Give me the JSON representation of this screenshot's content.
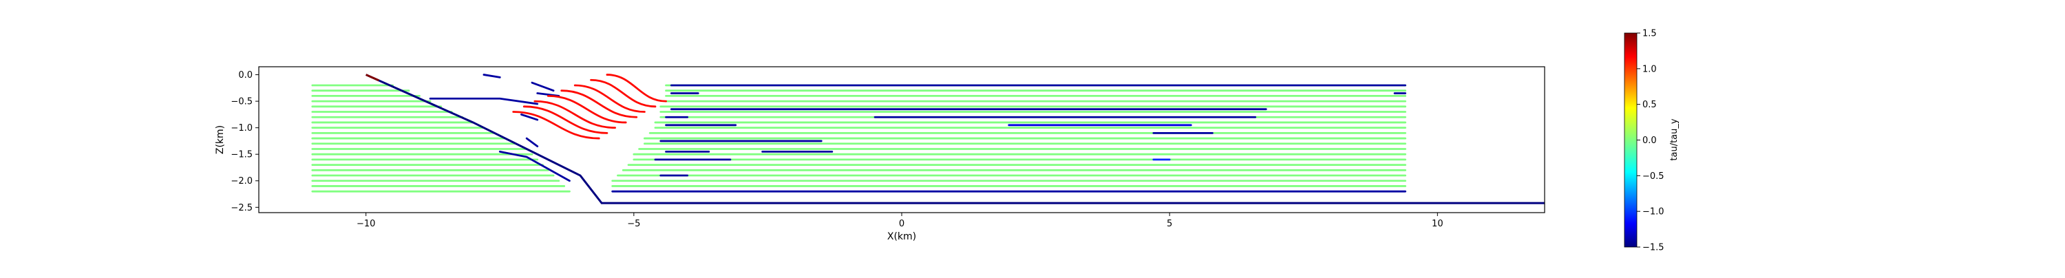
{
  "chart_data": {
    "type": "line",
    "title": "",
    "xlabel": "X(km)",
    "ylabel": "Z(km)",
    "xlim": [
      -12.0,
      12.0
    ],
    "ylim": [
      -2.6,
      0.15
    ],
    "x_ticks": [
      -10,
      -5,
      0,
      5,
      10
    ],
    "x_tick_labels": [
      "−10",
      "−5",
      "0",
      "5",
      "10"
    ],
    "y_ticks": [
      0.0,
      -0.5,
      -1.0,
      -1.5,
      -2.0,
      -2.5
    ],
    "y_tick_labels": [
      "0.0",
      "−0.5",
      "−1.0",
      "−1.5",
      "−2.0",
      "−2.5"
    ],
    "grid": false,
    "legend": "none",
    "fault": {
      "points": [
        [
          -10.0,
          0.0
        ],
        [
          -8.0,
          -0.9
        ],
        [
          -6.0,
          -1.9
        ],
        [
          -5.6,
          -2.42
        ],
        [
          12.0,
          -2.42
        ]
      ],
      "value": -1.5
    },
    "fault_tip_value": 1.5,
    "ramp_curves": {
      "count": 8,
      "x_start": [
        -5.5,
        -5.8,
        -6.1,
        -6.35,
        -6.6,
        -6.85,
        -7.05,
        -7.25
      ],
      "x_end": [
        -4.4,
        -4.6,
        -4.8,
        -4.95,
        -5.15,
        -5.35,
        -5.5,
        -5.65
      ],
      "z_top": [
        0.0,
        -0.1,
        -0.2,
        -0.3,
        -0.4,
        -0.5,
        -0.6,
        -0.7
      ],
      "value": 1.1
    },
    "flat_lines": [
      {
        "z": -0.2,
        "x": [
          -11.0,
          -9.5
        ],
        "value": 0.0
      },
      {
        "z": -0.3,
        "x": [
          -11.0,
          -9.2
        ],
        "value": 0.0
      },
      {
        "z": -0.4,
        "x": [
          -11.0,
          -9.0
        ],
        "value": 0.0
      },
      {
        "z": -0.5,
        "x": [
          -11.0,
          -8.8
        ],
        "value": 0.0
      },
      {
        "z": -0.6,
        "x": [
          -11.0,
          -8.6
        ],
        "value": 0.0
      },
      {
        "z": -0.7,
        "x": [
          -11.0,
          -8.4
        ],
        "value": 0.0
      },
      {
        "z": -0.8,
        "x": [
          -11.0,
          -8.2
        ],
        "value": 0.0
      },
      {
        "z": -0.9,
        "x": [
          -11.0,
          -8.0
        ],
        "value": 0.0
      },
      {
        "z": -1.0,
        "x": [
          -11.0,
          -7.8
        ],
        "value": 0.0
      },
      {
        "z": -1.1,
        "x": [
          -11.0,
          -7.6
        ],
        "value": 0.0
      },
      {
        "z": -1.2,
        "x": [
          -11.0,
          -7.4
        ],
        "value": 0.0
      },
      {
        "z": -1.3,
        "x": [
          -11.0,
          -7.2
        ],
        "value": 0.0
      },
      {
        "z": -1.4,
        "x": [
          -11.0,
          -7.0
        ],
        "value": 0.0
      },
      {
        "z": -1.5,
        "x": [
          -11.0,
          -6.9
        ],
        "value": 0.0
      },
      {
        "z": -1.6,
        "x": [
          -11.0,
          -6.8
        ],
        "value": 0.0
      },
      {
        "z": -1.7,
        "x": [
          -11.0,
          -6.7
        ],
        "value": 0.0
      },
      {
        "z": -1.8,
        "x": [
          -11.0,
          -6.6
        ],
        "value": 0.0
      },
      {
        "z": -1.9,
        "x": [
          -11.0,
          -6.5
        ],
        "value": 0.0
      },
      {
        "z": -2.0,
        "x": [
          -11.0,
          -6.4
        ],
        "value": 0.0
      },
      {
        "z": -2.1,
        "x": [
          -11.0,
          -6.3
        ],
        "value": 0.0
      },
      {
        "z": -2.2,
        "x": [
          -11.0,
          -6.2
        ],
        "value": 0.0
      },
      {
        "z": -0.2,
        "x": [
          -4.4,
          9.4
        ],
        "value": 0.0
      },
      {
        "z": -0.3,
        "x": [
          -4.4,
          9.4
        ],
        "value": 0.0
      },
      {
        "z": -0.4,
        "x": [
          -4.4,
          9.4
        ],
        "value": 0.0
      },
      {
        "z": -0.5,
        "x": [
          -4.4,
          9.4
        ],
        "value": 0.0
      },
      {
        "z": -0.6,
        "x": [
          -4.5,
          9.4
        ],
        "value": 0.0
      },
      {
        "z": -0.7,
        "x": [
          -4.5,
          9.4
        ],
        "value": 0.0
      },
      {
        "z": -0.8,
        "x": [
          -4.5,
          9.4
        ],
        "value": 0.0
      },
      {
        "z": -0.9,
        "x": [
          -4.6,
          9.4
        ],
        "value": 0.0
      },
      {
        "z": -1.0,
        "x": [
          -4.6,
          9.4
        ],
        "value": 0.0
      },
      {
        "z": -1.1,
        "x": [
          -4.7,
          9.4
        ],
        "value": 0.0
      },
      {
        "z": -1.2,
        "x": [
          -4.8,
          9.4
        ],
        "value": 0.0
      },
      {
        "z": -1.3,
        "x": [
          -4.8,
          9.4
        ],
        "value": 0.0
      },
      {
        "z": -1.4,
        "x": [
          -4.9,
          9.4
        ],
        "value": 0.0
      },
      {
        "z": -1.5,
        "x": [
          -5.0,
          9.4
        ],
        "value": 0.0
      },
      {
        "z": -1.6,
        "x": [
          -5.0,
          9.4
        ],
        "value": 0.0
      },
      {
        "z": -1.7,
        "x": [
          -5.1,
          9.4
        ],
        "value": 0.0
      },
      {
        "z": -1.8,
        "x": [
          -5.2,
          9.4
        ],
        "value": 0.0
      },
      {
        "z": -1.9,
        "x": [
          -5.3,
          9.4
        ],
        "value": 0.0
      },
      {
        "z": -2.0,
        "x": [
          -5.4,
          9.4
        ],
        "value": 0.0
      },
      {
        "z": -2.1,
        "x": [
          -5.4,
          9.4
        ],
        "value": 0.0
      },
      {
        "z": -0.2,
        "x": [
          -4.3,
          9.4
        ],
        "value": -1.4
      },
      {
        "z": -0.35,
        "x": [
          -4.3,
          -3.8
        ],
        "value": -1.4
      },
      {
        "z": -0.65,
        "x": [
          -4.3,
          6.8
        ],
        "value": -1.4
      },
      {
        "z": -0.8,
        "x": [
          -4.4,
          -4.0
        ],
        "value": -1.4
      },
      {
        "z": -0.8,
        "x": [
          -0.5,
          6.6
        ],
        "value": -1.4
      },
      {
        "z": -0.95,
        "x": [
          -4.4,
          -3.1
        ],
        "value": -1.4
      },
      {
        "z": -0.95,
        "x": [
          2.0,
          5.4
        ],
        "value": -1.2
      },
      {
        "z": -1.1,
        "x": [
          4.7,
          5.8
        ],
        "value": -1.4
      },
      {
        "z": -1.25,
        "x": [
          -4.5,
          -1.5
        ],
        "value": -1.4
      },
      {
        "z": -1.45,
        "x": [
          -4.4,
          -3.6
        ],
        "value": -1.4
      },
      {
        "z": -1.45,
        "x": [
          -2.6,
          -1.3
        ],
        "value": -1.4
      },
      {
        "z": -1.6,
        "x": [
          -4.6,
          -3.2
        ],
        "value": -1.4
      },
      {
        "z": -1.6,
        "x": [
          4.7,
          5.0
        ],
        "value": -1.0
      },
      {
        "z": -1.9,
        "x": [
          -4.5,
          -4.0
        ],
        "value": -1.4
      },
      {
        "z": -2.2,
        "x": [
          -5.4,
          9.4
        ],
        "value": -1.4
      },
      {
        "z": -0.35,
        "x": [
          9.2,
          9.4
        ],
        "value": -1.4
      }
    ],
    "fault_segments": [
      {
        "points": [
          [
            -7.8,
            0.0
          ],
          [
            -7.5,
            -0.05
          ]
        ],
        "value": -1.4
      },
      {
        "points": [
          [
            -6.9,
            -0.15
          ],
          [
            -6.5,
            -0.3
          ]
        ],
        "value": -1.4
      },
      {
        "points": [
          [
            -6.8,
            -0.35
          ],
          [
            -6.4,
            -0.4
          ]
        ],
        "value": -1.4
      },
      {
        "points": [
          [
            -8.8,
            -0.45
          ],
          [
            -7.5,
            -0.45
          ],
          [
            -6.8,
            -0.55
          ]
        ],
        "value": -1.4
      },
      {
        "points": [
          [
            -7.1,
            -0.75
          ],
          [
            -6.8,
            -0.85
          ]
        ],
        "value": -1.4
      },
      {
        "points": [
          [
            -7.0,
            -1.2
          ],
          [
            -6.8,
            -1.35
          ]
        ],
        "value": -1.4
      },
      {
        "points": [
          [
            -7.5,
            -1.45
          ],
          [
            -7.0,
            -1.55
          ],
          [
            -6.2,
            -2.0
          ]
        ],
        "value": -1.4
      }
    ],
    "colorbar": {
      "label": "tau/tau_y",
      "min": -1.5,
      "max": 1.5,
      "ticks": [
        1.5,
        1.0,
        0.5,
        0.0,
        -0.5,
        -1.0,
        -1.5
      ],
      "tick_labels": [
        "1.5",
        "1.0",
        "0.5",
        "0.0",
        "−0.5",
        "−1.0",
        "−1.5"
      ],
      "colormap": "jet"
    }
  }
}
